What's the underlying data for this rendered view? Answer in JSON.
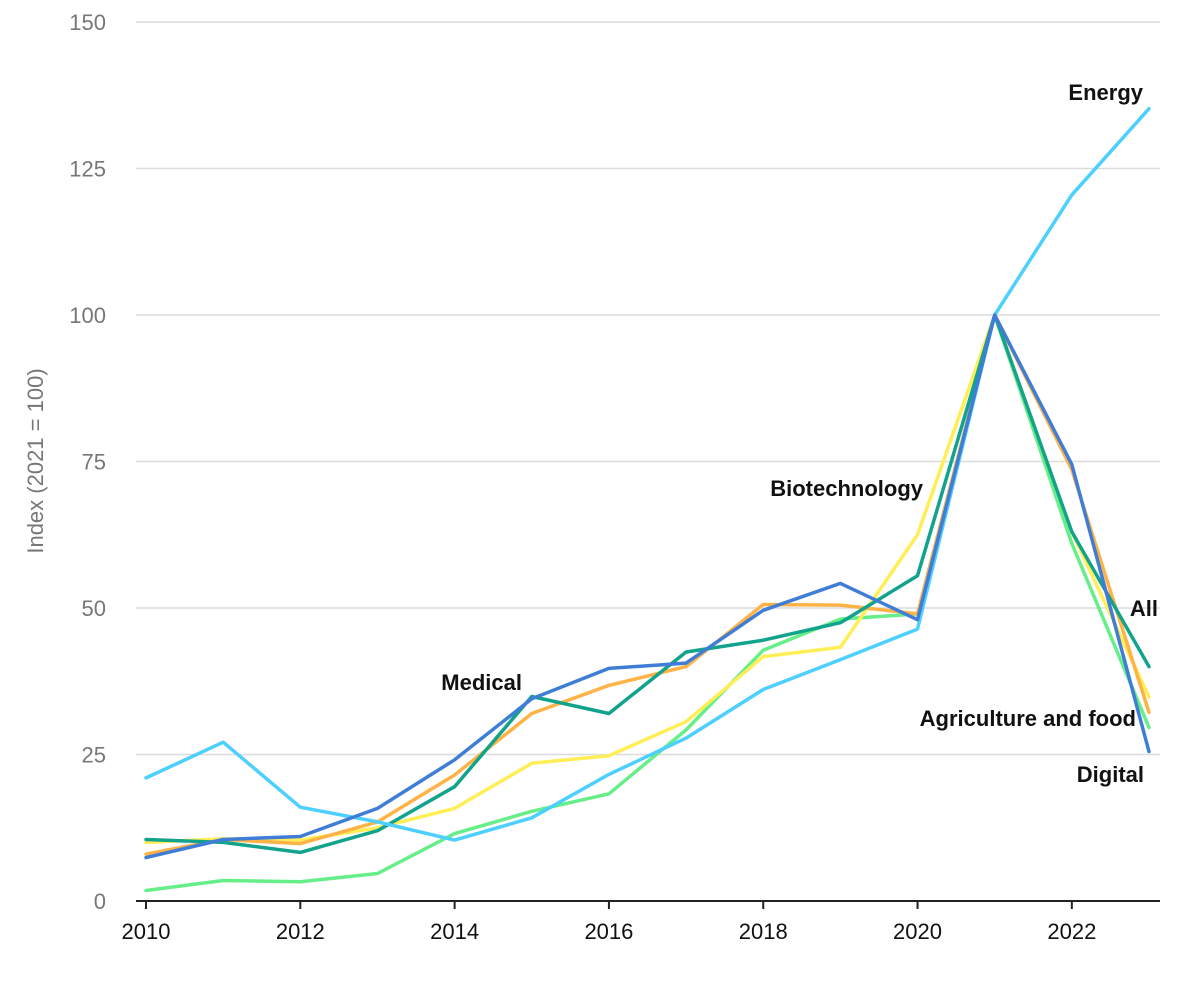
{
  "chart_data": {
    "type": "line",
    "ylabel": "Index (2021 = 100)",
    "xlabel": "",
    "ylim": [
      0,
      150
    ],
    "xlim": [
      2010,
      2023
    ],
    "yticks": [
      0,
      25,
      50,
      75,
      100,
      125,
      150
    ],
    "xticks": [
      2010,
      2012,
      2014,
      2016,
      2018,
      2020,
      2022
    ],
    "grid": true,
    "x": [
      2010,
      2011,
      2012,
      2013,
      2014,
      2015,
      2016,
      2017,
      2018,
      2019,
      2020,
      2021,
      2022,
      2023
    ],
    "series": [
      {
        "name": "Agriculture and food",
        "color": "#66ee88",
        "values": [
          1.8,
          3.5,
          3.3,
          4.7,
          11.5,
          15.3,
          18.3,
          29.2,
          42.8,
          48.1,
          49.0,
          100,
          61.0,
          29.6
        ]
      },
      {
        "name": "Biotechnology",
        "color": "#ffee55",
        "values": [
          10.0,
          10.6,
          10.4,
          12.5,
          15.8,
          23.5,
          24.8,
          30.6,
          41.7,
          43.3,
          62.5,
          100,
          63.0,
          34.8
        ]
      },
      {
        "name": "Medical",
        "color": "#ffb347",
        "values": [
          8.0,
          10.5,
          9.8,
          13.5,
          21.5,
          32.0,
          36.8,
          40.0,
          50.6,
          50.5,
          49.0,
          100,
          73.6,
          32.2
        ]
      },
      {
        "name": "All",
        "color": "#12a38c",
        "values": [
          10.5,
          10.0,
          8.3,
          12.0,
          19.5,
          34.9,
          32.0,
          42.5,
          44.5,
          47.5,
          55.5,
          100,
          63.0,
          40.0
        ]
      },
      {
        "name": "Energy",
        "color": "#4dcfff",
        "values": [
          21.0,
          27.1,
          16.0,
          13.5,
          10.4,
          14.2,
          21.6,
          27.8,
          36.1,
          41.2,
          46.4,
          100,
          120.5,
          135.2
        ]
      },
      {
        "name": "Digital",
        "color": "#3f7dd6",
        "values": [
          7.4,
          10.5,
          11.0,
          15.8,
          24.1,
          34.5,
          39.7,
          40.6,
          49.6,
          54.2,
          48.0,
          100,
          74.5,
          25.5
        ]
      }
    ],
    "annotations": [
      {
        "text": "Energy",
        "series": "Energy"
      },
      {
        "text": "Biotechnology",
        "series": "Biotechnology"
      },
      {
        "text": "Medical",
        "series": "Medical"
      },
      {
        "text": "All",
        "series": "All"
      },
      {
        "text": "Agriculture and food",
        "series": "Agriculture and food"
      },
      {
        "text": "Digital",
        "series": "Digital"
      }
    ]
  }
}
